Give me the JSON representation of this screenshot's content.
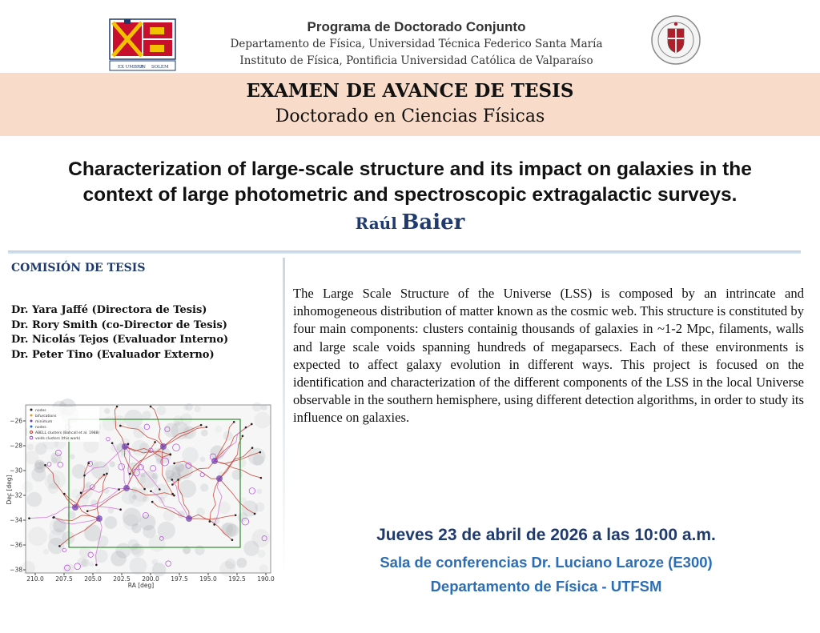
{
  "header": {
    "program_title": "Programa de Doctorado Conjunto",
    "dept_line_1": "Departamento de Física, Universidad Técnica Federico Santa María",
    "dept_line_2": "Instituto de Física, Pontificia Universidad Católica de Valparaíso",
    "logo_left_motto_left": "EX UMBRA",
    "logo_left_motto_mid": "IN",
    "logo_left_motto_right": "SOLEM"
  },
  "exam": {
    "title": "EXAMEN DE AVANCE DE TESIS",
    "subtitle": "Doctorado en Ciencias Físicas"
  },
  "thesis": {
    "title_line_1": "Characterization of large-scale structure and its impact on galaxies in the",
    "title_line_2": "context of large photometric and spectroscopic extragalactic surveys.",
    "author_first": "Raúl",
    "author_last": "Baier"
  },
  "committee": {
    "heading": "COMISIÓN DE TESIS",
    "members": [
      "Dr. Yara Jaffé (Directora de Tesis)",
      "Dr. Rory Smith (co-Director de Tesis)",
      "Dr. Nicolás Tejos (Evaluador Interno)",
      "Dr. Peter Tino (Evaluador Externo)"
    ]
  },
  "abstract": "The Large Scale Structure of the Universe (LSS) is composed by an intrincate and inhomogeneous  distribution of matter known as the cosmic web. This structure is constituted by four main components: clusters containig thousands of galaxies in ~1-2 Mpc, filaments, walls and large scale voids spanning hundreds of megaparsecs. Each of these environments is expected to affect galaxy evolution in different ways. This project is focused on the identification and characterization of the different components of the LSS in the local Universe observable in the southern hemisphere, using different detection algorithms, in order to study its influence on galaxies.",
  "event": {
    "date": "Jueves 23 de abril de 2026  a las 10:00 a.m.",
    "room": "Sala de conferencias Dr. Luciano Laroze (E300)",
    "department": "Departamento de Física - UTFSM"
  },
  "figure": {
    "xlabel": "RA [deg]",
    "ylabel": "Dec [deg]",
    "x_ticks": [
      "210.0",
      "207.5",
      "205.0",
      "202.5",
      "200.0",
      "197.5",
      "195.0",
      "192.5",
      "190.0"
    ],
    "y_ticks": [
      "−26",
      "−28",
      "−30",
      "−32",
      "−34",
      "−36",
      "−38"
    ],
    "legend": [
      "nodes",
      "bifurcations",
      "minimum",
      "nodes",
      "ABELL clusters (Bahcall et al. 1988)",
      "voids clusters (this work)"
    ]
  },
  "colors": {
    "band": "#f8dcc9",
    "navy": "#1f3a6e",
    "blue": "#2b6db6",
    "filament": "#c0392b",
    "box": "#2e8b2e"
  }
}
